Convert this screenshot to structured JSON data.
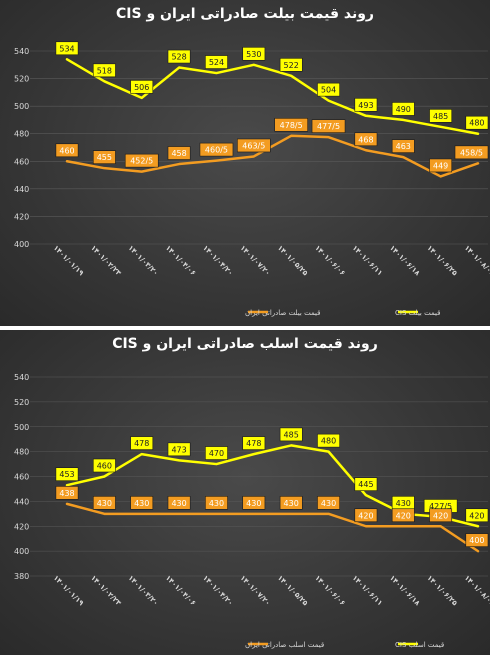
{
  "colors": {
    "cis": "#ffff00",
    "iran": "#f39c21",
    "grid": "#5a5a5a",
    "text": "#d9d9d9"
  },
  "chart_data": [
    {
      "type": "line",
      "title": "روند قیمت بیلت صادراتی ایران و CIS",
      "categories": [
        "۱۴۰۱/۰۱/۱۹",
        "۱۴۰۱/۰۲/۲۳",
        "۱۴۰۱/۰۳/۲۰",
        "۱۴۰۱/۰۴/۰۶",
        "۱۴۰۱/۰۴/۲۰",
        "۱۴۰۱/۰۷/۲۰",
        "۱۴۰۱/۰۵/۲۵",
        "۱۴۰۱/۰۶/۰۶",
        "۱۴۰۱/۰۶/۱۱",
        "۱۴۰۱/۰۶/۱۸",
        "۱۴۰۱/۰۶/۲۵",
        "۱۴۰۱/۰۸/۰۲"
      ],
      "ylim": [
        400,
        540
      ],
      "yticks": [
        400,
        420,
        440,
        460,
        480,
        500,
        520,
        540
      ],
      "series": [
        {
          "name": "قیمت بیلت CIS",
          "key": "cis",
          "values": [
            534,
            518,
            506,
            528,
            524,
            530,
            522,
            504,
            493,
            490,
            485,
            480
          ],
          "labels": [
            "534",
            "518",
            "506",
            "528",
            "524",
            "530",
            "522",
            "504",
            "493",
            "490",
            "485",
            "480"
          ]
        },
        {
          "name": "قیمت بیلت صادراتی ایران",
          "key": "iran",
          "values": [
            460,
            455,
            452.5,
            458,
            460.5,
            463.5,
            478.5,
            477.5,
            468,
            463,
            449,
            458.5
          ],
          "labels": [
            "460",
            "455",
            "452/5",
            "458",
            "460/5",
            "463/5",
            "478/5",
            "477/5",
            "468",
            "463",
            "449",
            "458/5"
          ]
        }
      ]
    },
    {
      "type": "line",
      "title": "روند قیمت اسلب صادراتی ایران و CIS",
      "categories": [
        "۱۴۰۱/۰۱/۱۹",
        "۱۴۰۱/۰۲/۲۳",
        "۱۴۰۱/۰۳/۲۰",
        "۱۴۰۱/۰۴/۰۶",
        "۱۴۰۱/۰۴/۲۰",
        "۱۴۰۱/۰۷/۲۰",
        "۱۴۰۱/۰۵/۲۵",
        "۱۴۰۱/۰۶/۰۶",
        "۱۴۰۱/۰۶/۱۱",
        "۱۴۰۱/۰۶/۱۸",
        "۱۴۰۱/۰۶/۲۵",
        "۱۴۰۱/۰۸/۰۲"
      ],
      "ylim": [
        380,
        540
      ],
      "yticks": [
        380,
        400,
        420,
        440,
        460,
        480,
        500,
        520,
        540
      ],
      "series": [
        {
          "name": "قیمت اسلب CIS",
          "key": "cis",
          "values": [
            453,
            460,
            478,
            473,
            470,
            478,
            485,
            480,
            445,
            430,
            427.5,
            420
          ],
          "labels": [
            "453",
            "460",
            "478",
            "473",
            "470",
            "478",
            "485",
            "480",
            "445",
            "430",
            "427/5",
            "420"
          ]
        },
        {
          "name": "قیمت اسلب صادراتی ایران",
          "key": "iran",
          "values": [
            438,
            430,
            430,
            430,
            430,
            430,
            430,
            430,
            420,
            420,
            420,
            400
          ],
          "labels": [
            "438",
            "430",
            "430",
            "430",
            "430",
            "430",
            "430",
            "430",
            "420",
            "420",
            "420",
            "400"
          ]
        }
      ]
    }
  ]
}
